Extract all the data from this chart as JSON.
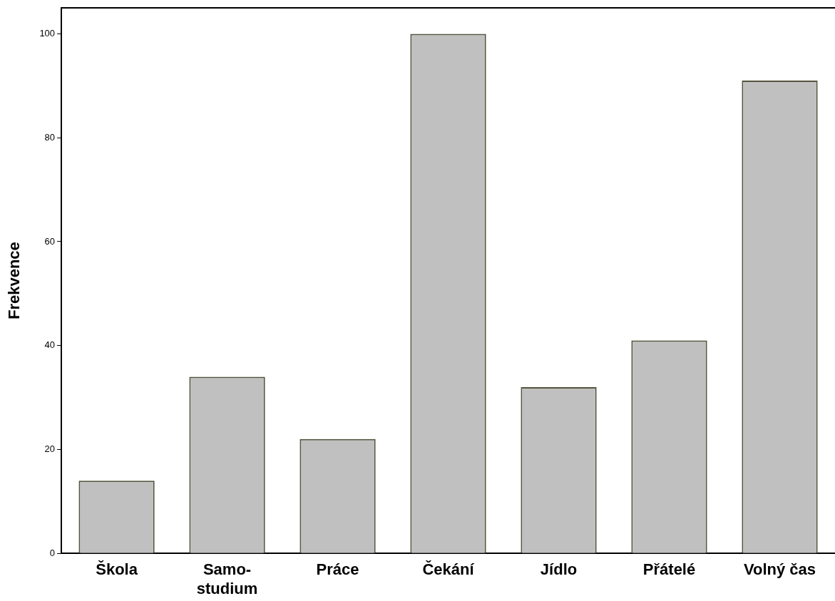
{
  "chart_data": {
    "type": "bar",
    "ylabel": "Frekvence",
    "categories": [
      "Škola",
      "Samo-studium",
      "Práce",
      "Čekání",
      "Jídlo",
      "Přátelé",
      "Volný čas"
    ],
    "values": [
      14,
      34,
      22,
      100,
      32,
      41,
      91
    ],
    "color": "#c0c0c0",
    "ylim": [
      0,
      105
    ],
    "yticks": [
      0,
      20,
      40,
      60,
      80,
      100
    ],
    "grid": false,
    "legend": false
  }
}
